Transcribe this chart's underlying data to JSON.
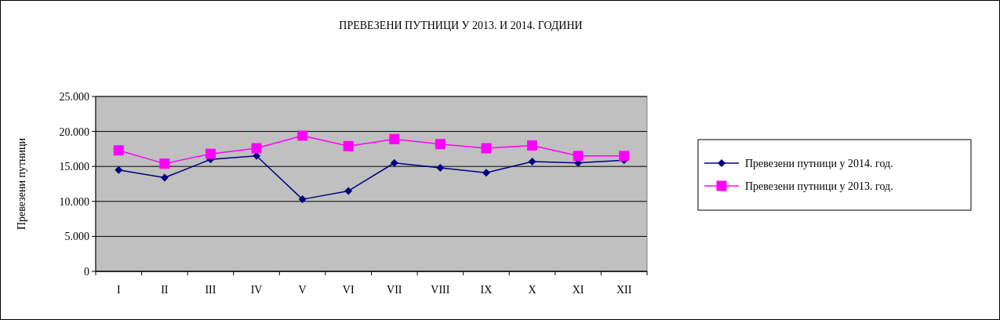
{
  "chart_data": {
    "type": "line",
    "title": "ПРЕВЕЗЕНИ ПУТНИЦИ У 2013. И 2014. ГОДИНИ",
    "ylabel": "Превезени путници",
    "categories": [
      "I",
      "II",
      "III",
      "IV",
      "V",
      "VI",
      "VII",
      "VIII",
      "IX",
      "X",
      "XI",
      "XII"
    ],
    "series": [
      {
        "name": "Превезени путници у 2014. год.",
        "color": "#000080",
        "marker": "diamond",
        "values": [
          14500,
          13400,
          16000,
          16500,
          10300,
          11500,
          15500,
          14800,
          14100,
          15700,
          15500,
          15900
        ]
      },
      {
        "name": "Превезени путници у 2013. год.",
        "color": "#ff00ff",
        "marker": "square",
        "values": [
          17300,
          15400,
          16800,
          17600,
          19400,
          17900,
          18900,
          18200,
          17600,
          18000,
          16500,
          16500
        ]
      }
    ],
    "ylim": [
      0,
      25000
    ],
    "yticks": [
      {
        "value": 0,
        "label": "0"
      },
      {
        "value": 5000,
        "label": "5.000"
      },
      {
        "value": 10000,
        "label": "10.000"
      },
      {
        "value": 15000,
        "label": "15.000"
      },
      {
        "value": 20000,
        "label": "20.000"
      },
      {
        "value": 25000,
        "label": "25.000"
      }
    ],
    "grid": "y",
    "legend": "right"
  }
}
